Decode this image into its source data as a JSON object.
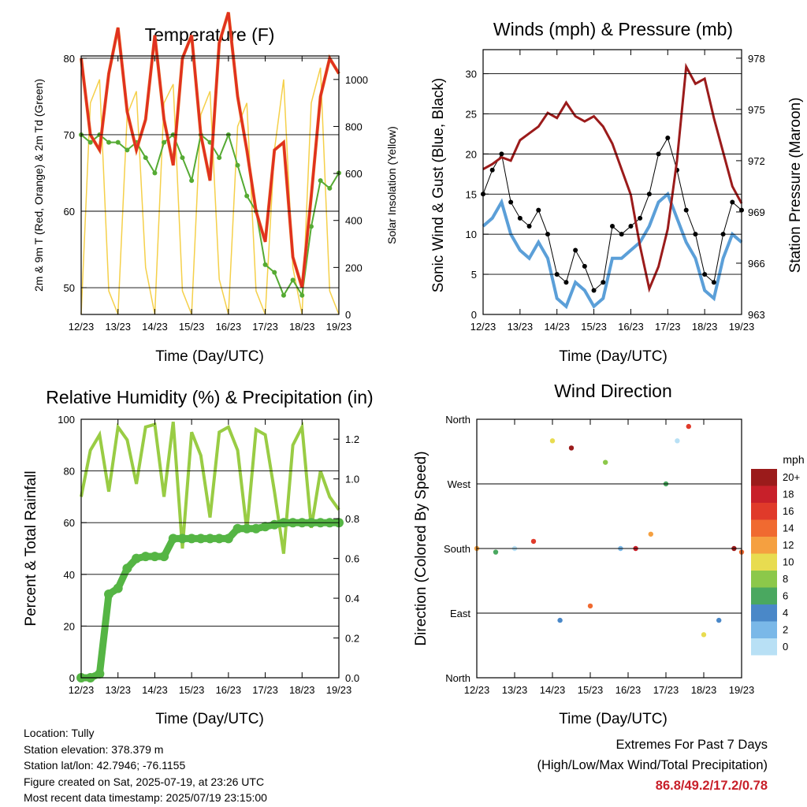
{
  "x_ticks": [
    "12/23",
    "13/23",
    "14/23",
    "15/23",
    "16/23",
    "17/23",
    "18/23",
    "19/23"
  ],
  "x_label": "Time (Day/UTC)",
  "colors": {
    "temp_2m": "#e03020",
    "temp_9m": "#e87020",
    "dewpoint": "#55aa33",
    "solar": "#f5d04a",
    "gust": "#000000",
    "wind": "#5b9fd8",
    "pressure": "#9b1b1b",
    "rh": "#99cc44",
    "precip": "#55b544"
  },
  "temperature": {
    "title": "Temperature (F)",
    "ylabel_left": "2m & 9m T (Red, Orange) & 2m Td (Green)",
    "ylabel_right": "Solar Insolation (Yellow)",
    "left_ticks": [
      "50",
      "60",
      "70",
      "80"
    ],
    "right_ticks": [
      "0",
      "200",
      "400",
      "600",
      "800",
      "1000"
    ]
  },
  "winds": {
    "title": "Winds (mph) & Pressure (mb)",
    "ylabel_left": "Sonic Wind & Gust (Blue, Black)",
    "ylabel_right": "Station Pressure (Maroon)",
    "left_ticks": [
      "0",
      "5",
      "10",
      "15",
      "20",
      "25",
      "30"
    ],
    "right_ticks": [
      "963",
      "966",
      "969",
      "972",
      "975",
      "978"
    ]
  },
  "humidity": {
    "title": "Relative Humidity (%) & Precipitation (in)",
    "ylabel_left": "Percent & Total Rainfall",
    "left_ticks": [
      "0",
      "20",
      "40",
      "60",
      "80",
      "100"
    ],
    "right_ticks": [
      "0.0",
      "0.2",
      "0.4",
      "0.6",
      "0.8",
      "1.0",
      "1.2"
    ]
  },
  "wind_direction": {
    "title": "Wind Direction",
    "ylabel_left": "Direction (Colored By Speed)",
    "left_ticks": [
      "North",
      "East",
      "South",
      "West",
      "North"
    ],
    "colorbar_unit": "mph",
    "colorbar_labels": [
      "20+",
      "18",
      "16",
      "14",
      "12",
      "10",
      "8",
      "6",
      "4",
      "2",
      "0"
    ],
    "colorbar_colors": [
      "#9b1b1b",
      "#c8202a",
      "#e03a2a",
      "#f06a30",
      "#f5a040",
      "#e8dc50",
      "#8cc84a",
      "#4aa860",
      "#4a88c8",
      "#7ab8e8",
      "#b8e0f5"
    ]
  },
  "info": {
    "location": "Location: Tully",
    "elevation": "Station elevation: 378.379 m",
    "latlon": "Station lat/lon: 42.7946; -76.1155",
    "created": "Figure created on Sat, 2025-07-19, at 23:26 UTC",
    "recent": "Most recent data timestamp: 2025/07/19 23:15:00"
  },
  "extremes": {
    "line1": "Extremes For Past 7 Days",
    "line2": "(High/Low/Max Wind/Total Precipitation)",
    "values": "86.8/49.2/17.2/0.78"
  },
  "chart_data": [
    {
      "type": "line",
      "title": "Temperature (F)",
      "x": [
        0,
        0.25,
        0.5,
        0.75,
        1,
        1.25,
        1.5,
        1.75,
        2,
        2.25,
        2.5,
        2.75,
        3,
        3.25,
        3.5,
        3.75,
        4,
        4.25,
        4.5,
        4.75,
        5,
        5.25,
        5.5,
        5.75,
        6,
        6.25,
        6.5,
        6.75,
        7
      ],
      "ylim": [
        46.5,
        80.3
      ],
      "y2lim": [
        0,
        1100
      ],
      "series": [
        {
          "axis": "left",
          "values": [
            80,
            70,
            68,
            78,
            84,
            73,
            68,
            72,
            83,
            72,
            66,
            80,
            83,
            70,
            64,
            82,
            86,
            75,
            68,
            60,
            56,
            68,
            69,
            54,
            50,
            62,
            75,
            80,
            78
          ]
        },
        {
          "axis": "left",
          "values": [
            70,
            69,
            70,
            69,
            69,
            68,
            69,
            67,
            65,
            69,
            70,
            67,
            64,
            70,
            69,
            67,
            70,
            66,
            62,
            60,
            53,
            52,
            49,
            51,
            49,
            58,
            64,
            63,
            65
          ]
        },
        {
          "axis": "right",
          "values": [
            0,
            900,
            1000,
            100,
            0,
            850,
            950,
            200,
            0,
            900,
            980,
            100,
            0,
            850,
            950,
            150,
            0,
            800,
            900,
            100,
            0,
            700,
            1000,
            200,
            0,
            900,
            1050,
            100,
            0
          ]
        }
      ]
    },
    {
      "type": "line",
      "title": "Winds (mph) & Pressure (mb)",
      "x": [
        0,
        0.25,
        0.5,
        0.75,
        1,
        1.25,
        1.5,
        1.75,
        2,
        2.25,
        2.5,
        2.75,
        3,
        3.25,
        3.5,
        3.75,
        4,
        4.25,
        4.5,
        4.75,
        5,
        5.25,
        5.5,
        5.75,
        6,
        6.25,
        6.5,
        6.75,
        7
      ],
      "ylim": [
        0,
        33
      ],
      "y2lim": [
        963,
        978.5
      ],
      "series": [
        {
          "axis": "left",
          "values": [
            15,
            18,
            20,
            14,
            12,
            11,
            13,
            10,
            5,
            4,
            8,
            6,
            3,
            4,
            11,
            10,
            11,
            12,
            15,
            20,
            22,
            18,
            13,
            10,
            5,
            4,
            10,
            14,
            13
          ]
        },
        {
          "axis": "left",
          "values": [
            11,
            12,
            14,
            10,
            8,
            7,
            9,
            7,
            2,
            1,
            4,
            3,
            1,
            2,
            7,
            7,
            8,
            9,
            11,
            14,
            15,
            12,
            9,
            7,
            3,
            2,
            7,
            10,
            9
          ]
        },
        {
          "axis": "right",
          "values": [
            971.5,
            971.8,
            972.2,
            972,
            973.2,
            973.6,
            974,
            974.8,
            974.5,
            975.4,
            974.6,
            974.3,
            974.6,
            974,
            973,
            971.5,
            970,
            967,
            964.5,
            965.8,
            968,
            972,
            977.5,
            976.5,
            976.8,
            974.5,
            972.5,
            970.5,
            969.5
          ]
        }
      ]
    },
    {
      "type": "line",
      "title": "Relative Humidity (%) & Precipitation (in)",
      "x": [
        0,
        0.25,
        0.5,
        0.75,
        1,
        1.25,
        1.5,
        1.75,
        2,
        2.25,
        2.5,
        2.75,
        3,
        3.25,
        3.5,
        3.75,
        4,
        4.25,
        4.5,
        4.75,
        5,
        5.25,
        5.5,
        5.75,
        6,
        6.25,
        6.5,
        6.75,
        7
      ],
      "ylim": [
        0,
        100
      ],
      "y2lim": [
        0,
        1.3
      ],
      "series": [
        {
          "axis": "left",
          "values": [
            70,
            88,
            94,
            72,
            97,
            92,
            75,
            97,
            98,
            70,
            99,
            50,
            95,
            86,
            62,
            95,
            97,
            88,
            57,
            96,
            94,
            72,
            48,
            90,
            97,
            58,
            80,
            70,
            65
          ]
        },
        {
          "axis": "right",
          "values": [
            0,
            0,
            0.02,
            0.42,
            0.45,
            0.55,
            0.6,
            0.61,
            0.61,
            0.61,
            0.7,
            0.7,
            0.7,
            0.7,
            0.7,
            0.7,
            0.7,
            0.75,
            0.75,
            0.75,
            0.76,
            0.77,
            0.78,
            0.78,
            0.78,
            0.78,
            0.78,
            0.78,
            0.78
          ]
        }
      ]
    },
    {
      "type": "scatter",
      "title": "Wind Direction",
      "x": [
        0,
        0.5,
        1,
        1.5,
        2,
        2.2,
        2.5,
        3,
        3.4,
        3.8,
        4.2,
        4.6,
        5,
        5.3,
        5.6,
        6,
        6.4,
        6.8,
        7
      ],
      "ylim": [
        0,
        360
      ],
      "series": [
        {
          "values": [
            180,
            175,
            180,
            190,
            330,
            80,
            320,
            100,
            300,
            180,
            180,
            200,
            270,
            330,
            350,
            60,
            80,
            180,
            175
          ]
        }
      ]
    }
  ]
}
